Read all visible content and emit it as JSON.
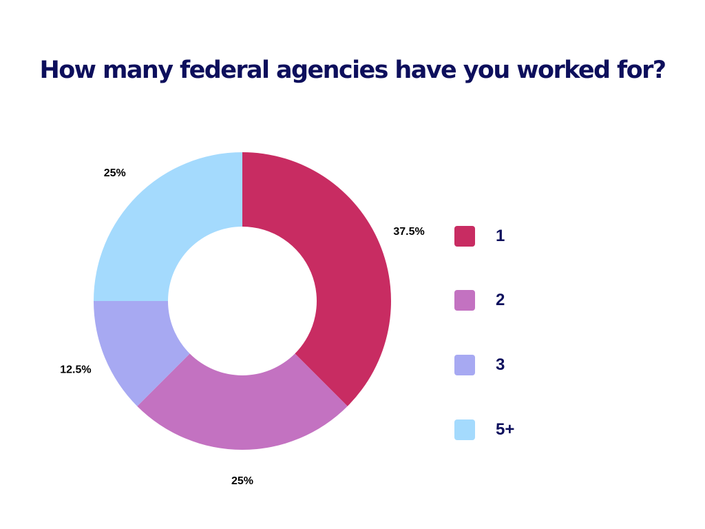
{
  "chart_data": {
    "type": "pie",
    "title": "How many federal agencies have you worked for?",
    "donut": true,
    "categories": [
      "1",
      "2",
      "3",
      "5+"
    ],
    "values": [
      37.5,
      25,
      12.5,
      25
    ],
    "data_labels": [
      "37.5%",
      "25%",
      "12.5%",
      "25%"
    ],
    "colors": [
      "#c82c62",
      "#c372c1",
      "#a7a9f2",
      "#a4dafd"
    ],
    "legend": "right"
  }
}
